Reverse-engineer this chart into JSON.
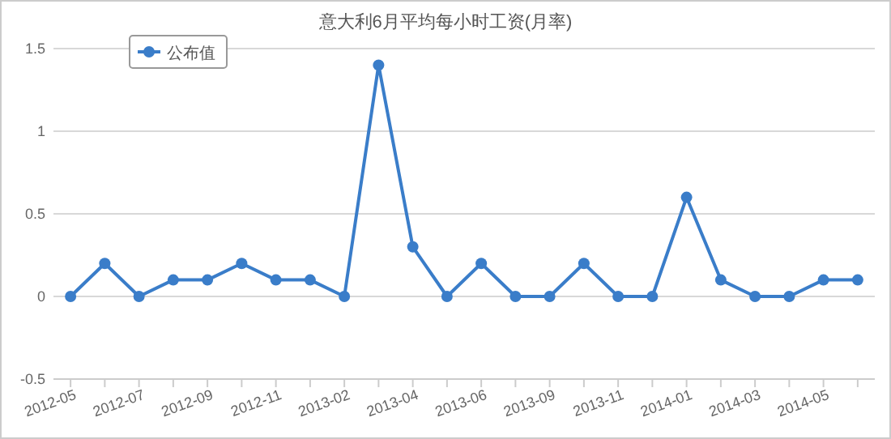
{
  "chart_data": {
    "type": "line",
    "title": "意大利6月平均每小时工资(月率)",
    "categories": [
      "2012-05",
      null,
      "2012-07",
      null,
      "2012-09",
      null,
      "2012-11",
      null,
      "2013-02",
      null,
      "2013-04",
      null,
      "2013-06",
      null,
      "2013-09",
      null,
      "2013-11",
      null,
      "2014-01",
      null,
      "2014-03",
      null,
      "2014-05",
      null
    ],
    "series": [
      {
        "name": "公布值",
        "color": "#3a7dc9",
        "values": [
          0,
          0.2,
          0,
          0.1,
          0.1,
          0.2,
          0.1,
          0.1,
          0,
          1.4,
          0.3,
          0,
          0.2,
          0,
          0,
          0.2,
          0,
          0,
          0.6,
          0.1,
          0,
          0,
          0.1,
          0.1
        ]
      }
    ],
    "ylim": [
      -0.5,
      1.5
    ],
    "yticks": [
      -0.5,
      0,
      0.5,
      1,
      1.5
    ],
    "grid": "y",
    "legend": "top left",
    "marker": "circle",
    "line_style": "solid"
  }
}
